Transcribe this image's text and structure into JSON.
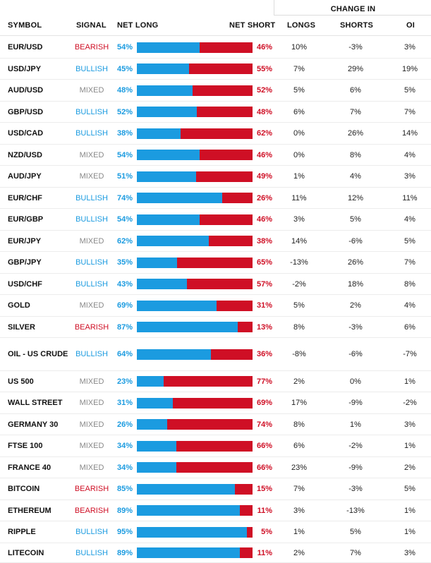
{
  "header": {
    "change_in": "CHANGE IN",
    "symbol": "SYMBOL",
    "signal": "SIGNAL",
    "net_long": "NET LONG",
    "net_short": "NET SHORT",
    "longs": "LONGS",
    "shorts": "SHORTS",
    "oi": "OI"
  },
  "colors": {
    "long": "#1b9be0",
    "short": "#cf0f25",
    "mixed": "#888888"
  },
  "rows": [
    {
      "symbol": "EUR/USD",
      "signal": "BEARISH",
      "net_long": "54%",
      "net_short": "46%",
      "long_pct": 54,
      "longs": "10%",
      "shorts": "-3%",
      "oi": "3%"
    },
    {
      "symbol": "USD/JPY",
      "signal": "BULLISH",
      "net_long": "45%",
      "net_short": "55%",
      "long_pct": 45,
      "longs": "7%",
      "shorts": "29%",
      "oi": "19%"
    },
    {
      "symbol": "AUD/USD",
      "signal": "MIXED",
      "net_long": "48%",
      "net_short": "52%",
      "long_pct": 48,
      "longs": "5%",
      "shorts": "6%",
      "oi": "5%"
    },
    {
      "symbol": "GBP/USD",
      "signal": "BULLISH",
      "net_long": "52%",
      "net_short": "48%",
      "long_pct": 52,
      "longs": "6%",
      "shorts": "7%",
      "oi": "7%"
    },
    {
      "symbol": "USD/CAD",
      "signal": "BULLISH",
      "net_long": "38%",
      "net_short": "62%",
      "long_pct": 38,
      "longs": "0%",
      "shorts": "26%",
      "oi": "14%"
    },
    {
      "symbol": "NZD/USD",
      "signal": "MIXED",
      "net_long": "54%",
      "net_short": "46%",
      "long_pct": 54,
      "longs": "0%",
      "shorts": "8%",
      "oi": "4%"
    },
    {
      "symbol": "AUD/JPY",
      "signal": "MIXED",
      "net_long": "51%",
      "net_short": "49%",
      "long_pct": 51,
      "longs": "1%",
      "shorts": "4%",
      "oi": "3%"
    },
    {
      "symbol": "EUR/CHF",
      "signal": "BULLISH",
      "net_long": "74%",
      "net_short": "26%",
      "long_pct": 74,
      "longs": "11%",
      "shorts": "12%",
      "oi": "11%"
    },
    {
      "symbol": "EUR/GBP",
      "signal": "BULLISH",
      "net_long": "54%",
      "net_short": "46%",
      "long_pct": 54,
      "longs": "3%",
      "shorts": "5%",
      "oi": "4%"
    },
    {
      "symbol": "EUR/JPY",
      "signal": "MIXED",
      "net_long": "62%",
      "net_short": "38%",
      "long_pct": 62,
      "longs": "14%",
      "shorts": "-6%",
      "oi": "5%"
    },
    {
      "symbol": "GBP/JPY",
      "signal": "BULLISH",
      "net_long": "35%",
      "net_short": "65%",
      "long_pct": 35,
      "longs": "-13%",
      "shorts": "26%",
      "oi": "7%"
    },
    {
      "symbol": "USD/CHF",
      "signal": "BULLISH",
      "net_long": "43%",
      "net_short": "57%",
      "long_pct": 43,
      "longs": "-2%",
      "shorts": "18%",
      "oi": "8%"
    },
    {
      "symbol": "GOLD",
      "signal": "MIXED",
      "net_long": "69%",
      "net_short": "31%",
      "long_pct": 69,
      "longs": "5%",
      "shorts": "2%",
      "oi": "4%"
    },
    {
      "symbol": "SILVER",
      "signal": "BEARISH",
      "net_long": "87%",
      "net_short": "13%",
      "long_pct": 87,
      "longs": "8%",
      "shorts": "-3%",
      "oi": "6%"
    },
    {
      "symbol": "OIL - US CRUDE",
      "signal": "BULLISH",
      "net_long": "64%",
      "net_short": "36%",
      "long_pct": 64,
      "longs": "-8%",
      "shorts": "-6%",
      "oi": "-7%"
    },
    {
      "symbol": "US 500",
      "signal": "MIXED",
      "net_long": "23%",
      "net_short": "77%",
      "long_pct": 23,
      "longs": "2%",
      "shorts": "0%",
      "oi": "1%"
    },
    {
      "symbol": "WALL STREET",
      "signal": "MIXED",
      "net_long": "31%",
      "net_short": "69%",
      "long_pct": 31,
      "longs": "17%",
      "shorts": "-9%",
      "oi": "-2%"
    },
    {
      "symbol": "GERMANY 30",
      "signal": "MIXED",
      "net_long": "26%",
      "net_short": "74%",
      "long_pct": 26,
      "longs": "8%",
      "shorts": "1%",
      "oi": "3%"
    },
    {
      "symbol": "FTSE 100",
      "signal": "MIXED",
      "net_long": "34%",
      "net_short": "66%",
      "long_pct": 34,
      "longs": "6%",
      "shorts": "-2%",
      "oi": "1%"
    },
    {
      "symbol": "FRANCE 40",
      "signal": "MIXED",
      "net_long": "34%",
      "net_short": "66%",
      "long_pct": 34,
      "longs": "23%",
      "shorts": "-9%",
      "oi": "2%"
    },
    {
      "symbol": "BITCOIN",
      "signal": "BEARISH",
      "net_long": "85%",
      "net_short": "15%",
      "long_pct": 85,
      "longs": "7%",
      "shorts": "-3%",
      "oi": "5%"
    },
    {
      "symbol": "ETHEREUM",
      "signal": "BEARISH",
      "net_long": "89%",
      "net_short": "11%",
      "long_pct": 89,
      "longs": "3%",
      "shorts": "-13%",
      "oi": "1%"
    },
    {
      "symbol": "RIPPLE",
      "signal": "BULLISH",
      "net_long": "95%",
      "net_short": "5%",
      "long_pct": 95,
      "longs": "1%",
      "shorts": "5%",
      "oi": "1%"
    },
    {
      "symbol": "LITECOIN",
      "signal": "BULLISH",
      "net_long": "89%",
      "net_short": "11%",
      "long_pct": 89,
      "longs": "2%",
      "shorts": "7%",
      "oi": "3%"
    }
  ]
}
